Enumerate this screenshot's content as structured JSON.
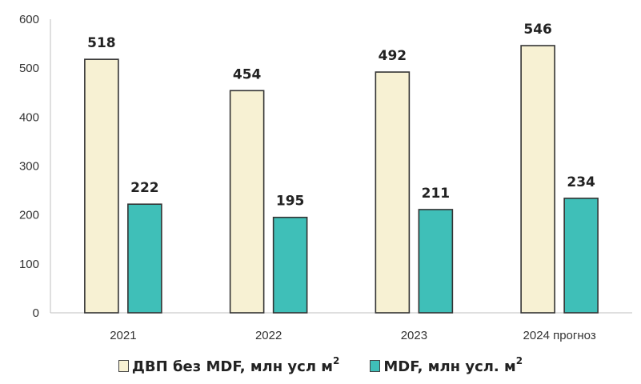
{
  "chart_data": {
    "type": "bar",
    "categories": [
      "2021",
      "2022",
      "2023",
      "2024 прогноз"
    ],
    "series": [
      {
        "name": "ДВП без  MDF, млн усл м",
        "values": [
          518,
          454,
          492,
          546
        ],
        "color": "#f7f1d3",
        "label_superscript": "2"
      },
      {
        "name": "MDF, млн усл. м",
        "values": [
          222,
          195,
          211,
          234
        ],
        "color": "#3fbfb8",
        "label_superscript": "2"
      }
    ],
    "ylim": [
      0,
      600
    ],
    "yticks": [
      "0",
      "100",
      "200",
      "300",
      "400",
      "500",
      "600"
    ],
    "grid": false,
    "legend_position": "bottom",
    "bar_outline_color": "#333333",
    "title": "",
    "xlabel": "",
    "ylabel": ""
  }
}
